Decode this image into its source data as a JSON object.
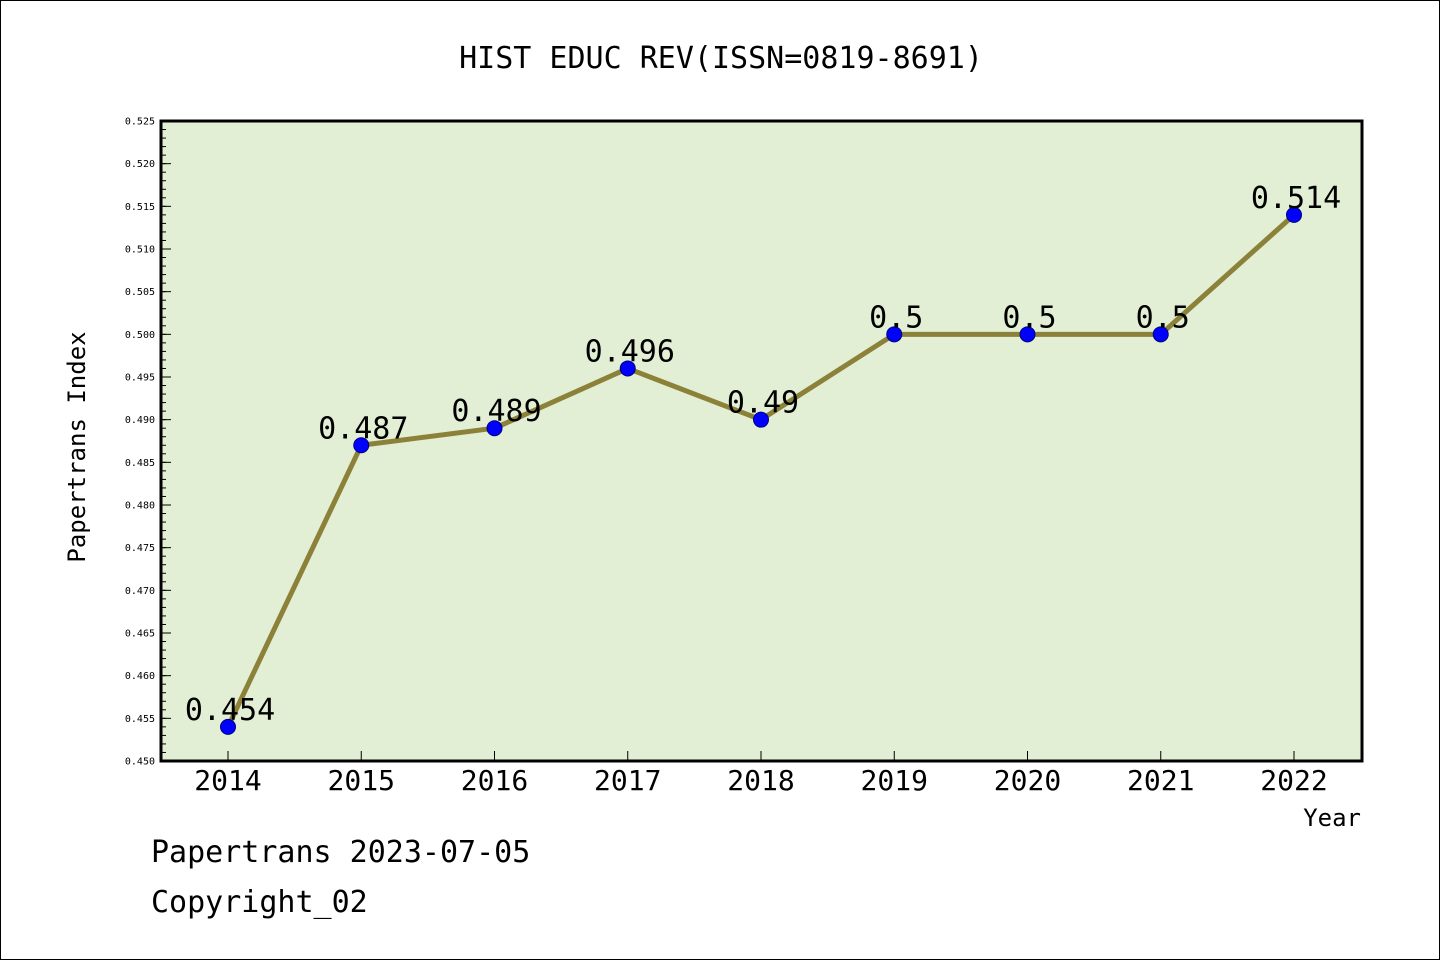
{
  "footer": {
    "line1": "Papertrans 2023-07-05",
    "line2": "Copyright_02"
  },
  "colors": {
    "plot_background": "#e2efd5",
    "line": "#8b8139",
    "marker": "#0000ff",
    "marker_edge": "#00007f"
  },
  "chart_data": {
    "type": "line",
    "title": "HIST EDUC REV(ISSN=0819-8691)",
    "xlabel": "Year",
    "ylabel": "Papertrans Index",
    "categories": [
      "2014",
      "2015",
      "2016",
      "2017",
      "2018",
      "2019",
      "2020",
      "2021",
      "2022"
    ],
    "series": [
      {
        "values": [
          0.454,
          0.487,
          0.489,
          0.496,
          0.49,
          0.5,
          0.5,
          0.5,
          0.514
        ],
        "labels": [
          "0.454",
          "0.487",
          "0.489",
          "0.496",
          "0.49",
          "0.5",
          "0.5",
          "0.5",
          "0.514"
        ]
      }
    ],
    "ylim": [
      0.45,
      0.525
    ],
    "yticks": [
      "0.450",
      "0.455",
      "0.460",
      "0.465",
      "0.470",
      "0.475",
      "0.480",
      "0.485",
      "0.490",
      "0.495",
      "0.500",
      "0.505",
      "0.510",
      "0.515",
      "0.520",
      "0.525"
    ],
    "grid": false,
    "legend": "none"
  }
}
